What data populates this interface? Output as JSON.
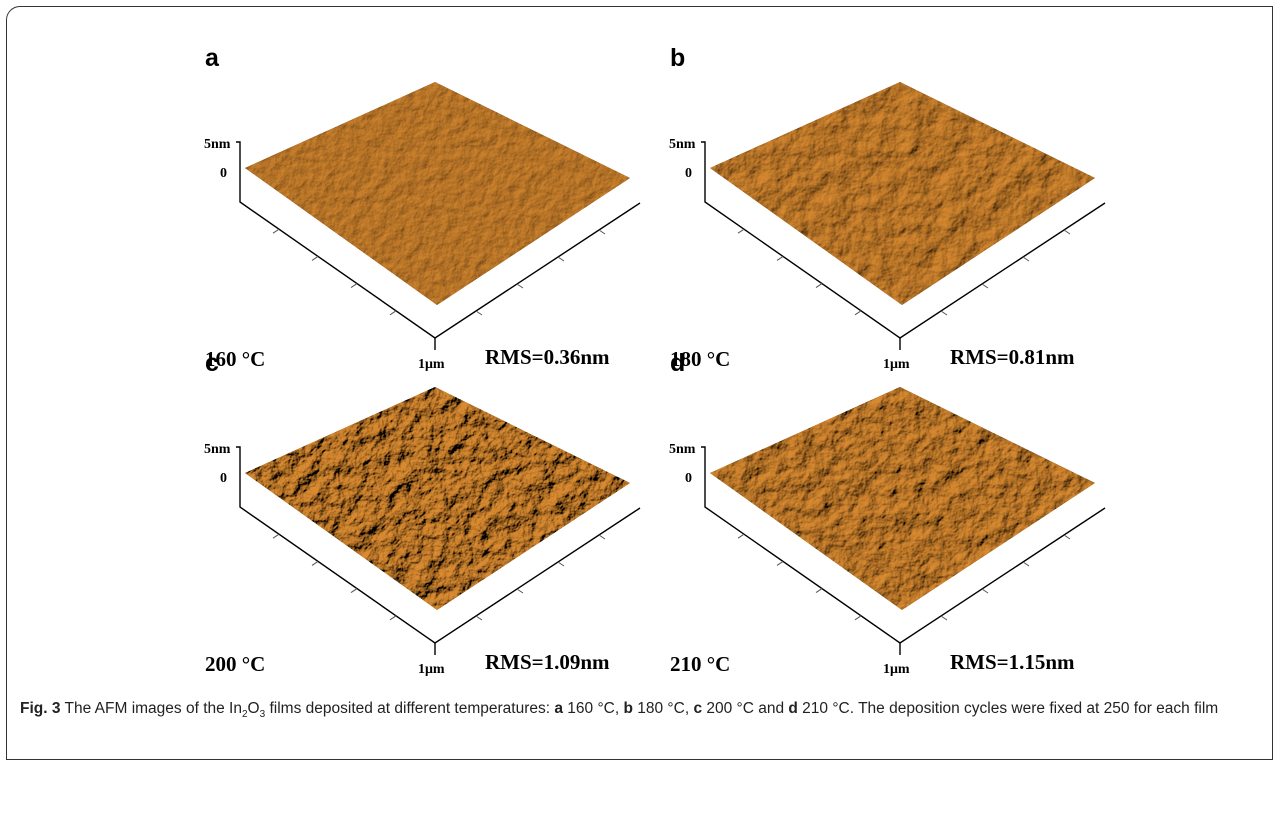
{
  "figure": {
    "panels": [
      {
        "label": "a",
        "z_max": "5nm",
        "z_zero": "0",
        "extent": "1μm",
        "temperature": "160 °C",
        "rms": "RMS=0.36nm"
      },
      {
        "label": "b",
        "z_max": "5nm",
        "z_zero": "0",
        "extent": "1μm",
        "temperature": "180 °C",
        "rms": "RMS=0.81nm"
      },
      {
        "label": "c",
        "z_max": "5nm",
        "z_zero": "0",
        "extent": "1μm",
        "temperature": "200 °C",
        "rms": "RMS=1.09nm"
      },
      {
        "label": "d",
        "z_max": "5nm",
        "z_zero": "0",
        "extent": "1μm",
        "temperature": "210 °C",
        "rms": "RMS=1.15nm"
      }
    ],
    "caption": {
      "label": "Fig. 3",
      "parts": [
        " The AFM images of the In",
        "2",
        "O",
        "3",
        " films deposited at different temperatures: ",
        "a",
        " 160 °C, ",
        "b",
        " 180 °C, ",
        "c",
        " 200 °C and ",
        "d",
        " 210 °C. The deposition cycles were fixed at 250 for each film"
      ]
    }
  }
}
